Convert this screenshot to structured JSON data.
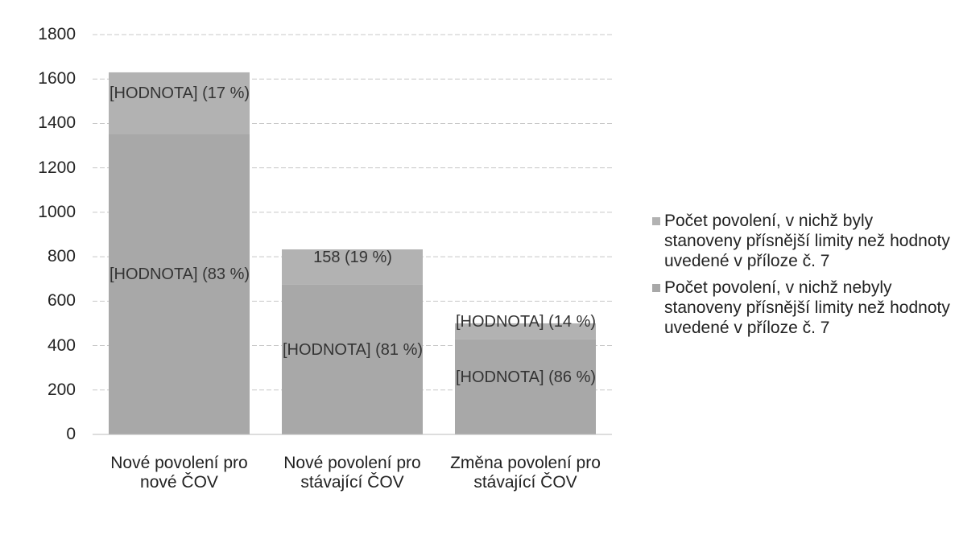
{
  "chart_data": {
    "type": "stacked_bar",
    "categories": [
      "Nové povolení pro nové ČOV",
      "Nové povolení pro stávající ČOV",
      "Změna povolení pro stávající ČOV"
    ],
    "series": [
      {
        "name": "Počet povolení, v nichž nebyly stanoveny přísnější limity než hodnoty uvedené v příloze č. 7",
        "color": "#a8a8a8",
        "values": [
          1353,
          675,
          430
        ],
        "value_labels": [
          "[HODNOTA] (83 %)",
          "[HODNOTA] (81 %)",
          "[HODNOTA] (86 %)"
        ]
      },
      {
        "name": "Počet povolení, v nichž byly stanoveny přísnější limity než hodnoty uvedené v příloze č. 7",
        "color": "#b2b2b2",
        "values": [
          277,
          158,
          70
        ],
        "value_labels": [
          "[HODNOTA] (17 %)",
          "158 (19 %)",
          "[HODNOTA] (14 %)"
        ]
      }
    ],
    "ylim": [
      0,
      1800
    ],
    "yticks": [
      0,
      200,
      400,
      600,
      800,
      1000,
      1200,
      1400,
      1600,
      1800
    ],
    "grid": true
  }
}
